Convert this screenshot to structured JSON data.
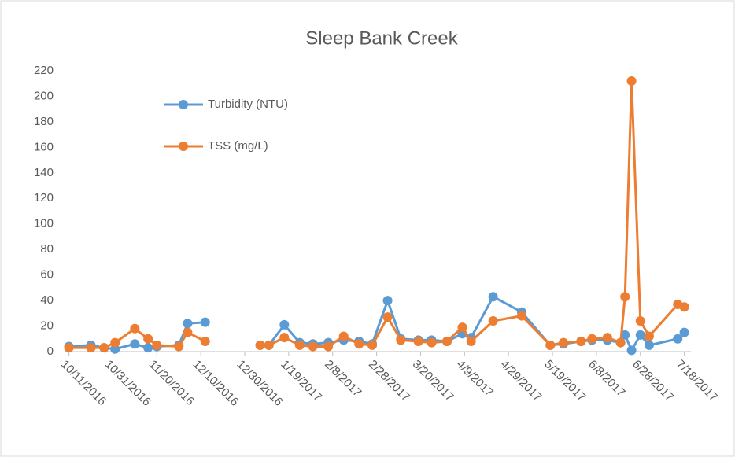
{
  "chart_data": {
    "type": "line",
    "title": "Sleep Bank Creek",
    "x": [
      "10/11/2016",
      "10/21/2016",
      "10/27/2016",
      "11/1/2016",
      "11/10/2016",
      "11/16/2016",
      "11/20/2016",
      "11/30/2016",
      "12/4/2016",
      "12/12/2016",
      "12/25/2016",
      "1/6/2017",
      "1/10/2017",
      "1/17/2017",
      "1/24/2017",
      "1/30/2017",
      "2/6/2017",
      "2/13/2017",
      "2/20/2017",
      "2/26/2017",
      "3/5/2017",
      "3/11/2017",
      "3/19/2017",
      "3/25/2017",
      "4/1/2017",
      "4/8/2017",
      "4/12/2017",
      "4/22/2017",
      "5/5/2017",
      "5/18/2017",
      "5/24/2017",
      "6/1/2017",
      "6/6/2017",
      "6/13/2017",
      "6/19/2017",
      "6/21/2017",
      "6/24/2017",
      "6/28/2017",
      "7/2/2017",
      "7/15/2017",
      "7/18/2017"
    ],
    "series": [
      {
        "name": "Turbidity (NTU)",
        "color": "#5b9bd5",
        "values": [
          4,
          5,
          3,
          2,
          6,
          3,
          4,
          5,
          22,
          23,
          null,
          5,
          5,
          21,
          7,
          6,
          7,
          9,
          8,
          6,
          40,
          10,
          9,
          9,
          8,
          14,
          11,
          43,
          31,
          5,
          6,
          8,
          9,
          9,
          7,
          13,
          1,
          13,
          5,
          10,
          15
        ]
      },
      {
        "name": "TSS (mg/L)",
        "color": "#ed7d31",
        "values": [
          3,
          3,
          3,
          7,
          18,
          10,
          5,
          4,
          15,
          8,
          null,
          5,
          5,
          11,
          5,
          4,
          4,
          12,
          6,
          5,
          27,
          9,
          8,
          7,
          8,
          19,
          8,
          24,
          28,
          5,
          7,
          8,
          10,
          11,
          7,
          43,
          212,
          24,
          12,
          37,
          35
        ]
      }
    ],
    "xlim": [
      "10/9/2016",
      "7/21/2017"
    ],
    "xticks": [
      "10/11/2016",
      "10/31/2016",
      "11/20/2016",
      "12/10/2016",
      "12/30/2016",
      "1/19/2017",
      "2/8/2017",
      "2/28/2017",
      "3/20/2017",
      "4/9/2017",
      "4/29/2017",
      "5/19/2017",
      "6/8/2017",
      "6/28/2017",
      "7/18/2017"
    ],
    "ylim": [
      0,
      220
    ],
    "yticks": [
      0,
      20,
      40,
      60,
      80,
      100,
      120,
      140,
      160,
      180,
      200,
      220
    ],
    "grid": false,
    "legend": "upper left"
  }
}
